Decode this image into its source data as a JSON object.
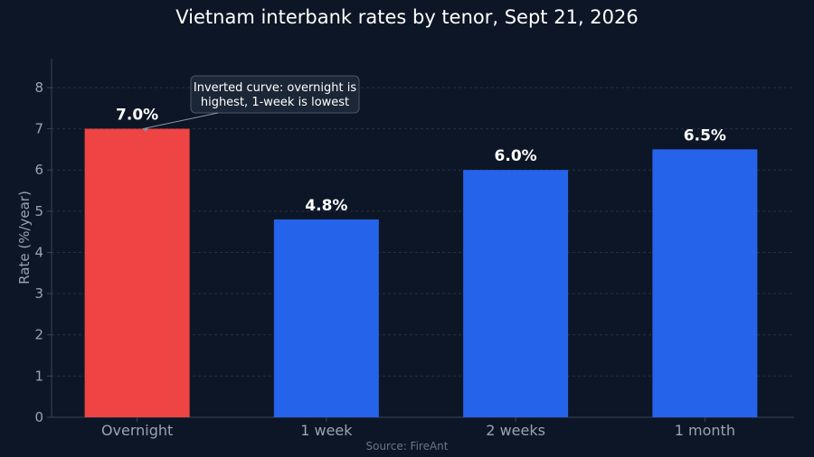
{
  "chart_data": {
    "type": "bar",
    "title": "Vietnam interbank rates by tenor, Sept 21, 2026",
    "xlabel": "",
    "ylabel": "Rate (%/year)",
    "categories": [
      "Overnight",
      "1 week",
      "2 weeks",
      "1 month"
    ],
    "values": [
      7.0,
      4.8,
      6.0,
      6.5
    ],
    "data_labels": [
      "7.0%",
      "4.8%",
      "6.0%",
      "6.5%"
    ],
    "ylim": [
      0,
      8.7
    ],
    "yticks": [
      0,
      1,
      2,
      3,
      4,
      5,
      6,
      7,
      8
    ],
    "grid": true,
    "colors": {
      "highlight": "#ef4444",
      "default": "#2563eb"
    },
    "highlight_index": 0,
    "annotation": {
      "lines": [
        "Inverted curve: overnight is",
        "highest, 1-week is lowest"
      ],
      "target_category": "Overnight",
      "target_value": 7.0
    },
    "source": "Source: FireAnt"
  }
}
